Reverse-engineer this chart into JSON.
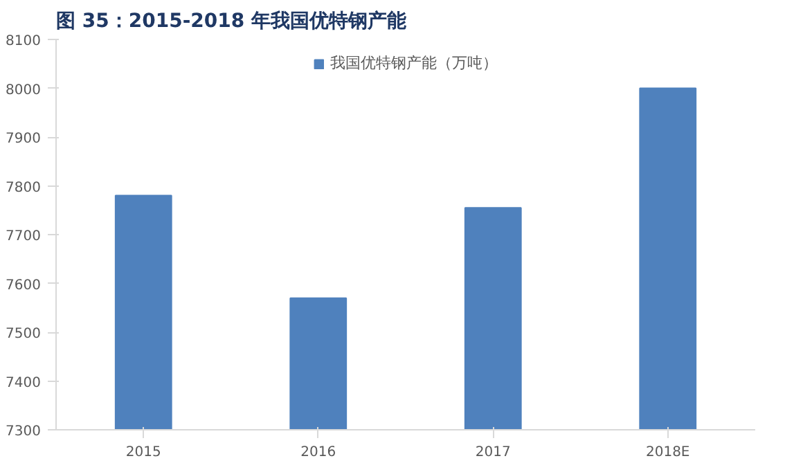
{
  "chart_data": {
    "type": "bar",
    "title": "图 35：2015-2018 年我国优特钢产能",
    "categories": [
      "2015",
      "2016",
      "2017",
      "2018E"
    ],
    "series": [
      {
        "name": "我国优特钢产能（万吨）",
        "color": "#4f81bd",
        "values": [
          7780,
          7570,
          7755,
          8000
        ]
      }
    ],
    "ylim": [
      7300,
      8100
    ],
    "yticks": [
      7300,
      7400,
      7500,
      7600,
      7700,
      7800,
      7900,
      8000,
      8100
    ],
    "grid": false,
    "legend": "top"
  }
}
